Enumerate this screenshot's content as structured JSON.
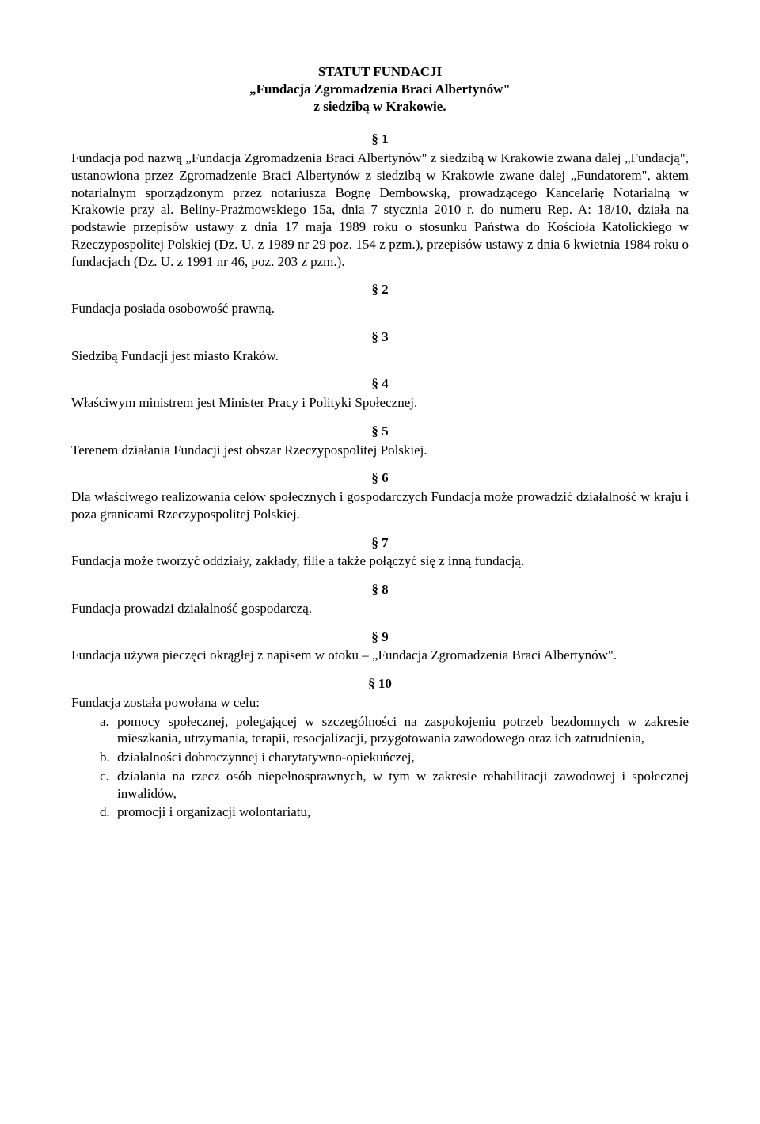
{
  "title": {
    "line1": "STATUT FUNDACJI",
    "line2": "„Fundacja Zgromadzenia Braci Albertynów\"",
    "line3": "z siedzibą w Krakowie."
  },
  "sections": {
    "s1": {
      "num": "§ 1",
      "body": "Fundacja pod nazwą „Fundacja Zgromadzenia Braci Albertynów\" z siedzibą w Krakowie zwana dalej „Fundacją\", ustanowiona przez Zgromadzenie Braci Albertynów z siedzibą w Krakowie zwane dalej „Fundatorem\", aktem notarialnym sporządzonym przez notariusza Bognę Dembowską, prowadzącego Kancelarię Notarialną w Krakowie przy al. Beliny-Prażmowskiego 15a, dnia 7 stycznia 2010 r. do numeru Rep. A: 18/10, działa na podstawie przepisów ustawy z dnia 17 maja 1989 roku o stosunku Państwa do Kościoła Katolickiego w Rzeczypospolitej Polskiej (Dz. U. z 1989 nr 29 poz. 154 z pzm.), przepisów ustawy z dnia 6 kwietnia 1984 roku o fundacjach (Dz. U. z 1991 nr 46, poz. 203 z pzm.)."
    },
    "s2": {
      "num": "§ 2",
      "body": "Fundacja posiada osobowość prawną."
    },
    "s3": {
      "num": "§ 3",
      "body": "Siedzibą Fundacji jest miasto Kraków."
    },
    "s4": {
      "num": "§ 4",
      "body": "Właściwym ministrem jest Minister Pracy i Polityki Społecznej."
    },
    "s5": {
      "num": "§ 5",
      "body": "Terenem działania Fundacji jest obszar Rzeczypospolitej Polskiej."
    },
    "s6": {
      "num": "§ 6",
      "body": "Dla właściwego realizowania celów społecznych i gospodarczych Fundacja może prowadzić działalność w kraju i poza granicami Rzeczypospolitej Polskiej."
    },
    "s7": {
      "num": "§ 7",
      "body": "Fundacja może tworzyć oddziały, zakłady, filie a także połączyć się z inną fundacją."
    },
    "s8": {
      "num": "§ 8",
      "body": "Fundacja prowadzi działalność gospodarczą."
    },
    "s9": {
      "num": "§ 9",
      "body": "Fundacja używa pieczęci okrągłej z napisem w otoku – „Fundacja Zgromadzenia Braci Albertynów\"."
    },
    "s10": {
      "num": "§ 10",
      "intro": "Fundacja została powołana w celu:",
      "items": [
        {
          "m": "a.",
          "t": "pomocy społecznej, polegającej w szczególności na zaspokojeniu potrzeb bezdomnych w zakresie mieszkania, utrzymania, terapii, resocjalizacji, przygotowania zawodowego oraz ich zatrudnienia,"
        },
        {
          "m": "b.",
          "t": "działalności dobroczynnej i charytatywno-opiekuńczej,"
        },
        {
          "m": "c.",
          "t": "działania na rzecz osób niepełnosprawnych, w tym w zakresie rehabilitacji zawodowej i społecznej inwalidów,"
        },
        {
          "m": "d.",
          "t": "promocji i organizacji wolontariatu,"
        }
      ]
    }
  }
}
